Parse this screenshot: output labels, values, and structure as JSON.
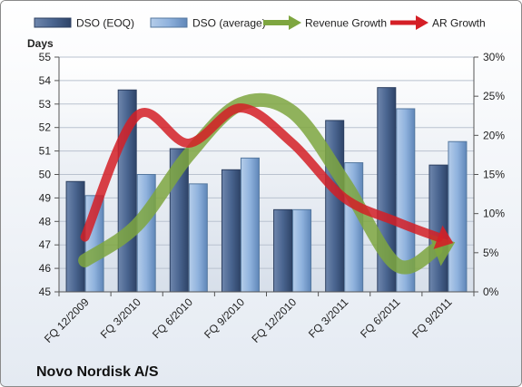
{
  "chart_data": {
    "type": "bar",
    "company": "Novo Nordisk A/S",
    "ylabel_left": "Days",
    "categories": [
      "FQ 12/2009",
      "FQ 3/2010",
      "FQ 6/2010",
      "FQ 9/2010",
      "FQ 12/2010",
      "FQ 3/2011",
      "FQ 6/2011",
      "FQ 9/2011"
    ],
    "left_axis": {
      "min": 45,
      "max": 55,
      "ticks": [
        "45",
        "46",
        "47",
        "48",
        "49",
        "50",
        "51",
        "52",
        "53",
        "54",
        "55"
      ]
    },
    "right_axis": {
      "min": 0,
      "max": 30,
      "ticks": [
        "0%",
        "5%",
        "10%",
        "15%",
        "20%",
        "25%",
        "30%"
      ]
    },
    "series": [
      {
        "name": "DSO (EOQ)",
        "kind": "bar",
        "axis": "left",
        "color": "#4a6590",
        "values": [
          49.7,
          53.6,
          51.1,
          50.2,
          48.5,
          52.3,
          53.7,
          50.4
        ]
      },
      {
        "name": "DSO (average)",
        "kind": "bar",
        "axis": "left",
        "color": "#8fb2dd",
        "values": [
          49.1,
          50.0,
          49.6,
          50.7,
          48.5,
          50.5,
          52.8,
          51.4
        ]
      },
      {
        "name": "Revenue Growth",
        "kind": "arrow",
        "axis": "right",
        "color": "#7ea640",
        "values": [
          4.0,
          8.5,
          17.5,
          24.0,
          23.0,
          14.0,
          3.5,
          6.0
        ]
      },
      {
        "name": "AR Growth",
        "kind": "arrow",
        "axis": "right",
        "color": "#d41f26",
        "values": [
          7.0,
          22.5,
          19.0,
          23.5,
          19.0,
          12.0,
          9.0,
          6.5
        ]
      }
    ],
    "legend_position": "top",
    "grid": true
  }
}
